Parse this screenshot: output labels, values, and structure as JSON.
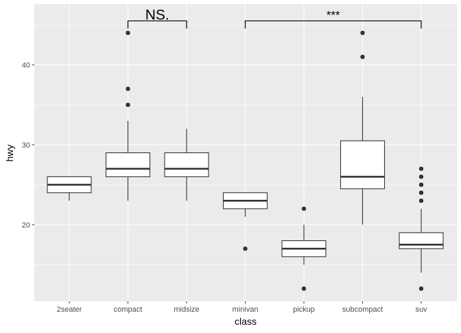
{
  "chart_data": {
    "type": "boxplot",
    "title": "",
    "xlabel": "class",
    "ylabel": "hwy",
    "ylim": [
      10.4,
      47.6
    ],
    "yticks": [
      20,
      30,
      40
    ],
    "ytick_labels": [
      "20",
      "30",
      "40"
    ],
    "grid": true,
    "categories": [
      "2seater",
      "compact",
      "midsize",
      "minivan",
      "pickup",
      "subcompact",
      "suv"
    ],
    "boxes": [
      {
        "category": "2seater",
        "whisker_low": 23,
        "q1": 24,
        "median": 25,
        "q3": 26,
        "whisker_high": 26,
        "outliers": []
      },
      {
        "category": "compact",
        "whisker_low": 23,
        "q1": 26,
        "median": 27,
        "q3": 29,
        "whisker_high": 33,
        "outliers": [
          35,
          37,
          44
        ]
      },
      {
        "category": "midsize",
        "whisker_low": 23,
        "q1": 26,
        "median": 27,
        "q3": 29,
        "whisker_high": 32,
        "outliers": []
      },
      {
        "category": "minivan",
        "whisker_low": 21,
        "q1": 22,
        "median": 23,
        "q3": 24,
        "whisker_high": 24,
        "outliers": [
          17
        ]
      },
      {
        "category": "pickup",
        "whisker_low": 15,
        "q1": 16,
        "median": 17,
        "q3": 18,
        "whisker_high": 20,
        "outliers": [
          12,
          22
        ]
      },
      {
        "category": "subcompact",
        "whisker_low": 20,
        "q1": 24.5,
        "median": 26,
        "q3": 30.5,
        "whisker_high": 36,
        "outliers": [
          41,
          44
        ]
      },
      {
        "category": "suv",
        "whisker_low": 14,
        "q1": 17,
        "median": 17.5,
        "q3": 19,
        "whisker_high": 22,
        "outliers": [
          12,
          23,
          24,
          25,
          26,
          27
        ]
      }
    ],
    "annotations": [
      {
        "from": "compact",
        "to": "midsize",
        "y": 45.5,
        "label": "NS."
      },
      {
        "from": "minivan",
        "to": "suv",
        "y": 45.5,
        "label": "***"
      }
    ],
    "colors": {
      "panel": "#EBEBEB",
      "grid_major": "#FFFFFF",
      "box_fill": "#FFFFFF",
      "box_line": "#333333",
      "tick_text": "#4D4D4D",
      "tick_mark": "#333333",
      "annotation": "#000000"
    }
  }
}
